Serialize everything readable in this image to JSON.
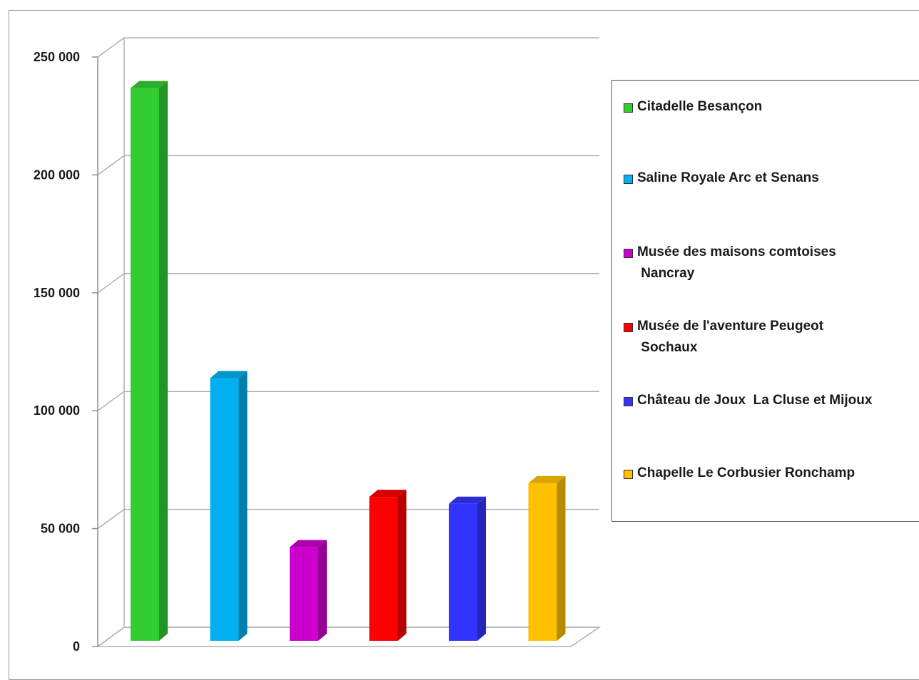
{
  "chart_data": {
    "type": "bar",
    "title": "",
    "xlabel": "",
    "ylabel": "",
    "ylim": [
      0,
      250000
    ],
    "yticks": [
      0,
      50000,
      100000,
      150000,
      200000,
      250000
    ],
    "ytick_labels": [
      "0",
      "50 000",
      "100 000",
      "150 000",
      "200 000",
      "250 000"
    ],
    "grid": true,
    "legend_position": "right",
    "categories": [
      "Citadelle Besançon",
      "Saline Royale Arc et Senans",
      "Musée des maisons comtoises Nancray",
      "Musée de l'aventure Peugeot Sochaux",
      "Château de Joux  La Cluse et Mijoux",
      "Chapelle Le Corbusier Ronchamp"
    ],
    "values": [
      242000,
      115000,
      41000,
      63000,
      60000,
      69000
    ],
    "colors": [
      "#33cc33",
      "#00b0f0",
      "#cc00cc",
      "#ff0000",
      "#3333ff",
      "#ffc000"
    ]
  },
  "legend": {
    "items": [
      {
        "label": "Citadelle Besançon",
        "color": "#33cc33"
      },
      {
        "label": "Saline Royale Arc et Senans",
        "color": "#00b0f0"
      },
      {
        "label": "Musée des maisons comtoises\n Nancray",
        "color": "#cc00cc"
      },
      {
        "label": "Musée de l'aventure Peugeot\n Sochaux",
        "color": "#ff0000"
      },
      {
        "label": "Château de Joux  La Cluse et Mijoux",
        "color": "#3333ff"
      },
      {
        "label": "Chapelle Le Corbusier Ronchamp",
        "color": "#ffc000"
      }
    ]
  }
}
